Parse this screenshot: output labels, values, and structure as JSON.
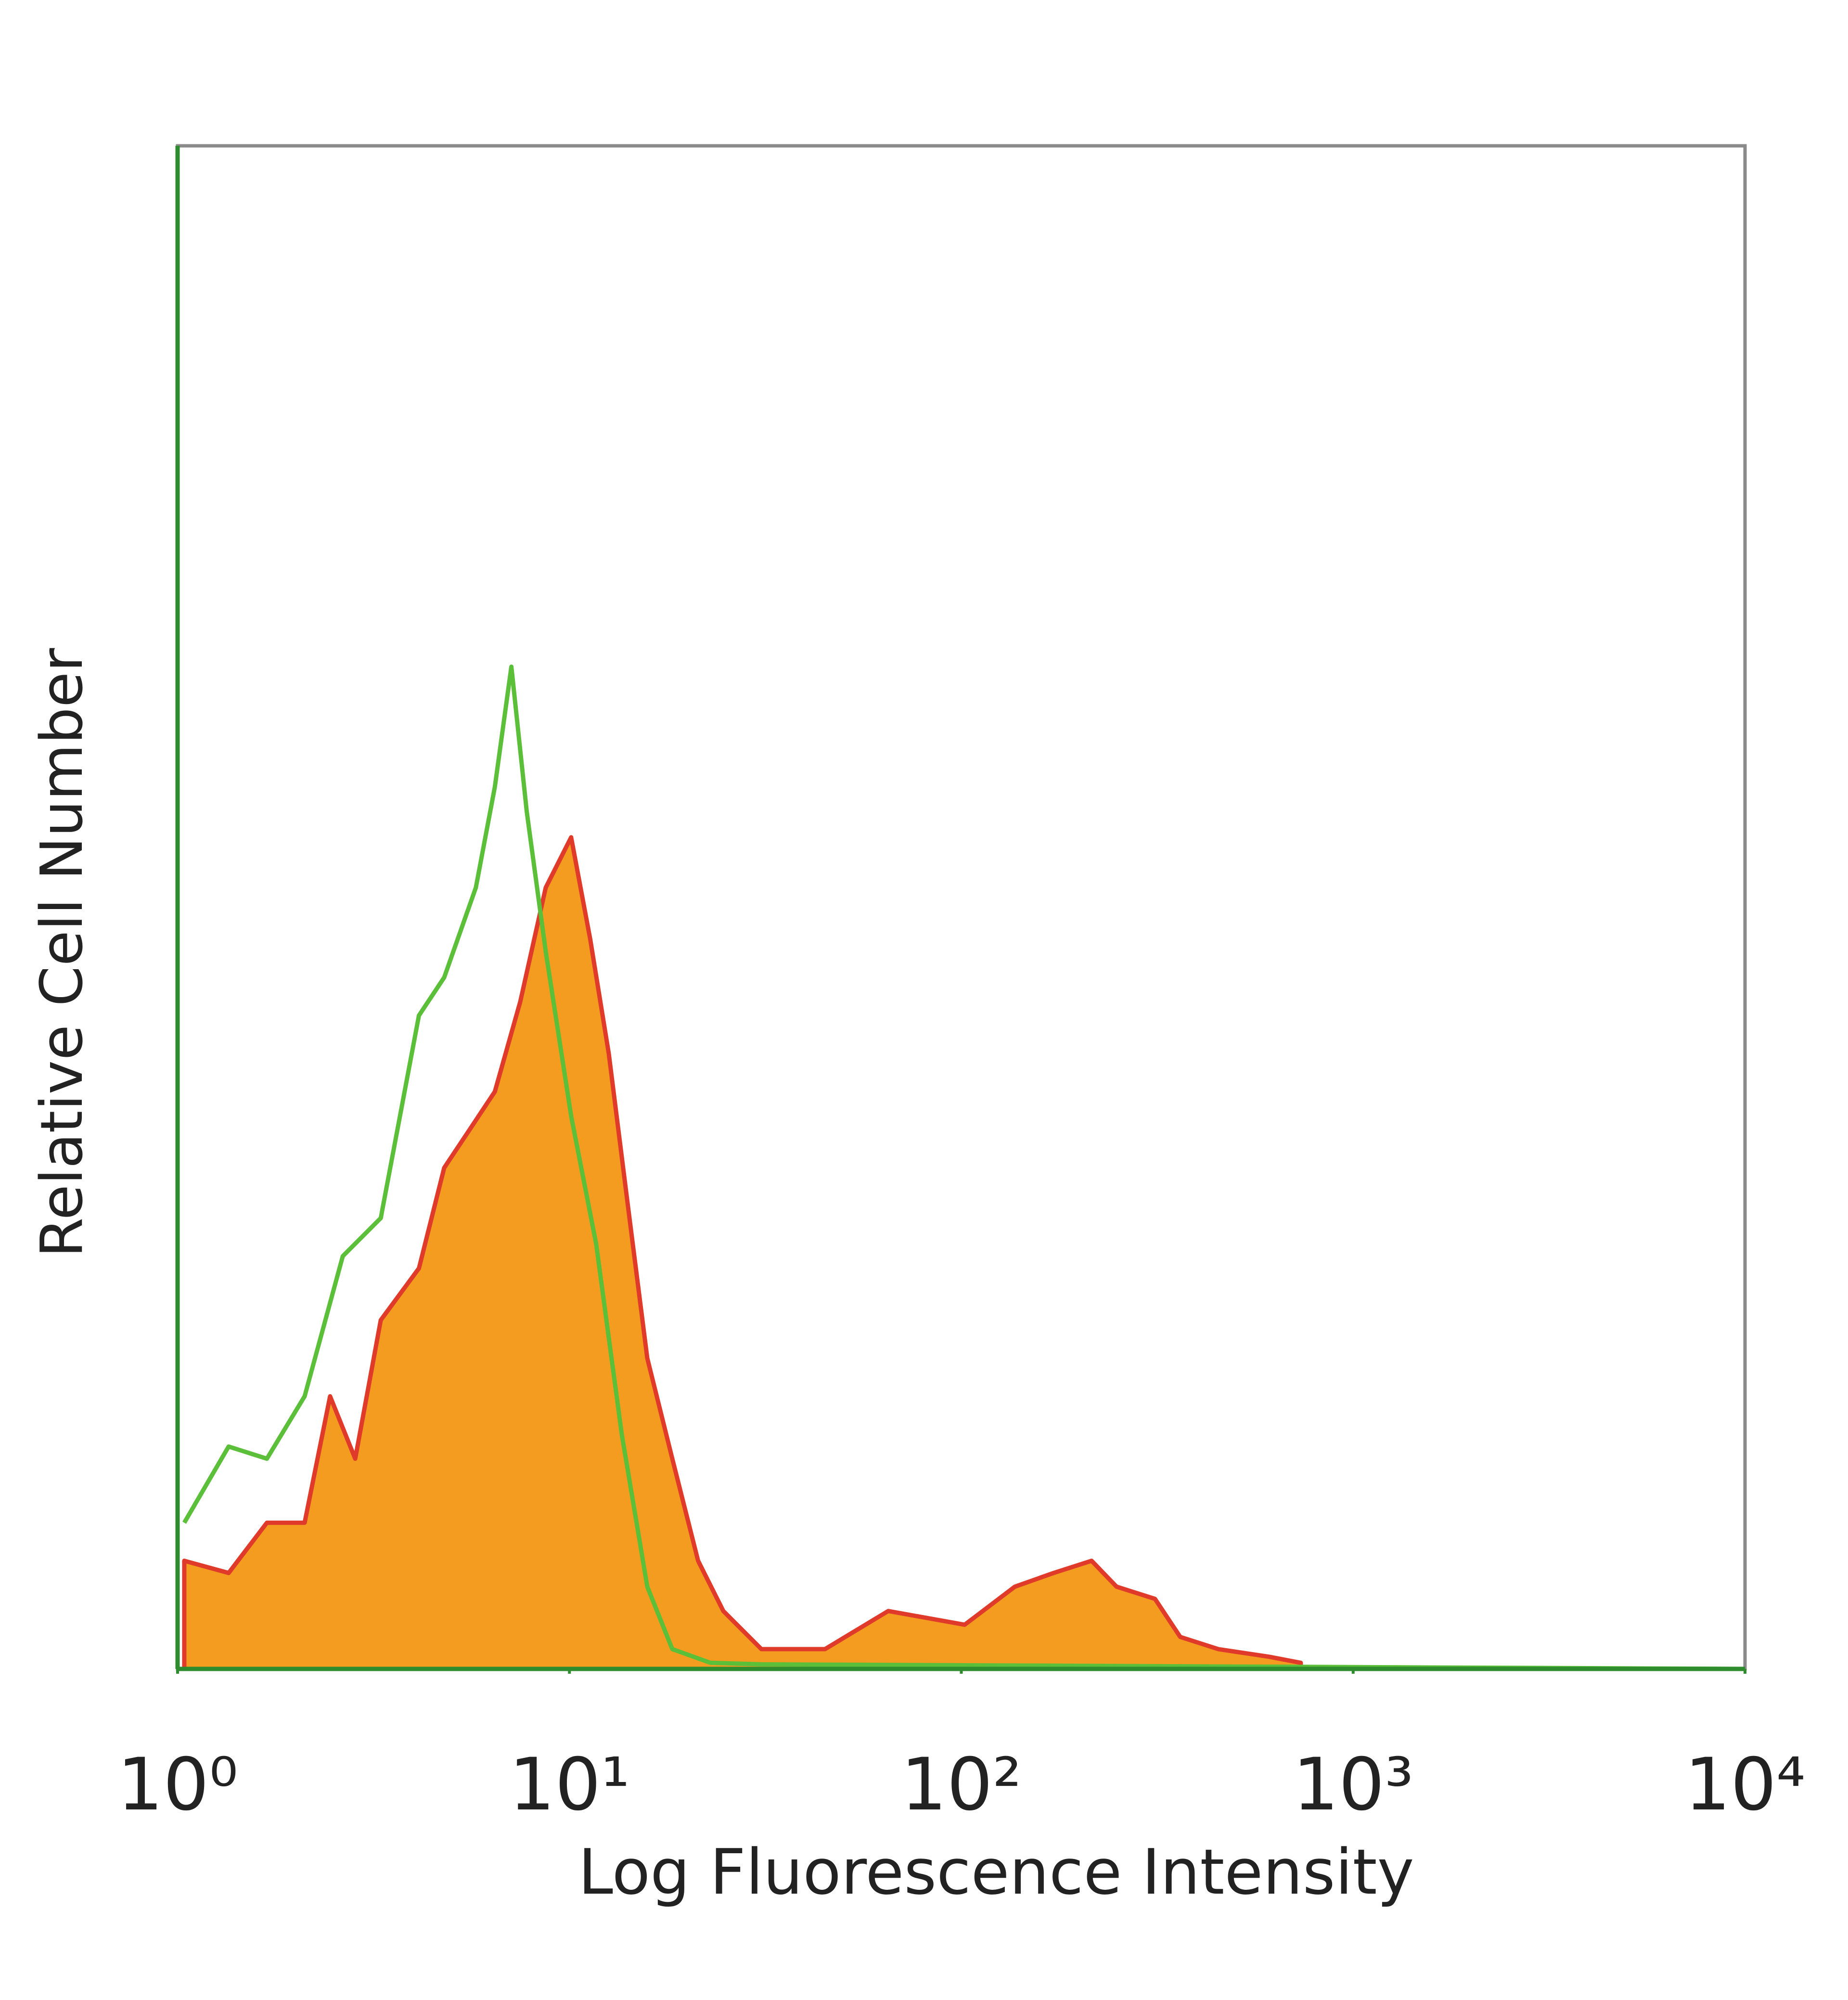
{
  "chart_data": {
    "type": "histogram-overlay",
    "x_label": "Log Fluorescence Intensity",
    "y_label": "Relative Cell Number",
    "xscale": "log",
    "xlim": [
      1,
      10000
    ],
    "ylim": [
      0,
      100
    ],
    "xticks": [
      {
        "value": 1,
        "label": "10⁰"
      },
      {
        "value": 10,
        "label": "10¹"
      },
      {
        "value": 100,
        "label": "10²"
      },
      {
        "value": 1000,
        "label": "10³"
      },
      {
        "value": 10000,
        "label": "10⁴"
      }
    ],
    "series": [
      {
        "fill": "#f39c1f",
        "color": "#e03a2a",
        "filled": true,
        "x": [
          1.04,
          1.35,
          1.69,
          2.11,
          2.45,
          2.84,
          3.3,
          4.13,
          4.79,
          5.56,
          6.45,
          7.49,
          8.7,
          10.1,
          11.3,
          12.6,
          14.1,
          15.8,
          18.3,
          21.3,
          24.7,
          30.9,
          44.9,
          65.1,
          102,
          137,
          172,
          215,
          249,
          312,
          362,
          453,
          610,
          735
        ],
        "values": [
          7.1,
          6.3,
          9.6,
          9.6,
          17.9,
          13.8,
          22.9,
          26.3,
          32.9,
          35.4,
          37.9,
          43.8,
          51.3,
          54.6,
          47.9,
          40.4,
          30.4,
          20.4,
          13.8,
          7.1,
          3.8,
          1.3,
          1.3,
          3.8,
          2.9,
          5.4,
          6.3,
          7.1,
          5.4,
          4.6,
          2.1,
          1.3,
          0.8,
          0.4
        ]
      },
      {
        "color": "#5cbf3a",
        "filled": false,
        "x": [
          1.04,
          1.35,
          1.69,
          2.11,
          2.64,
          3.3,
          4.13,
          4.79,
          5.77,
          6.45,
          7.11,
          7.78,
          8.7,
          10.1,
          11.7,
          13.6,
          15.8,
          18.3,
          22.9,
          30.9,
          10000
        ],
        "values": [
          9.6,
          14.6,
          13.8,
          17.9,
          27.1,
          29.6,
          42.9,
          45.4,
          51.3,
          57.9,
          65.8,
          56.3,
          47.1,
          36.3,
          27.9,
          15.4,
          5.4,
          1.3,
          0.4,
          0.3,
          0
        ]
      }
    ]
  }
}
